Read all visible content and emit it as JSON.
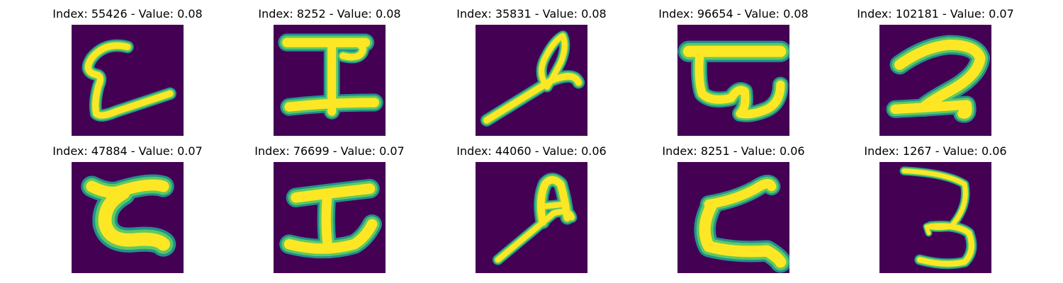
{
  "colors": {
    "background": "#440154",
    "stroke_core": "#fde725",
    "stroke_mid": "#5ec962",
    "stroke_edge": "#21918c"
  },
  "panels": [
    {
      "title": "Index: 55426 - Value: 0.08",
      "glyph": "hook-L"
    },
    {
      "title": "Index: 8252 - Value: 0.08",
      "glyph": "anchor-p"
    },
    {
      "title": "Index: 35831 - Value: 0.08",
      "glyph": "slanted-loop"
    },
    {
      "title": "Index: 96654 - Value: 0.08",
      "glyph": "bar-with-curl"
    },
    {
      "title": "Index: 102181 - Value: 0.07",
      "glyph": "two"
    },
    {
      "title": "Index: 47884 - Value: 0.07",
      "glyph": "open-c"
    },
    {
      "title": "Index: 76699 - Value: 0.07",
      "glyph": "anchor-i"
    },
    {
      "title": "Index: 44060 - Value: 0.06",
      "glyph": "slanted-a"
    },
    {
      "title": "Index: 8251 - Value: 0.06",
      "glyph": "z-curve"
    },
    {
      "title": "Index: 1267 - Value: 0.06",
      "glyph": "three"
    }
  ]
}
